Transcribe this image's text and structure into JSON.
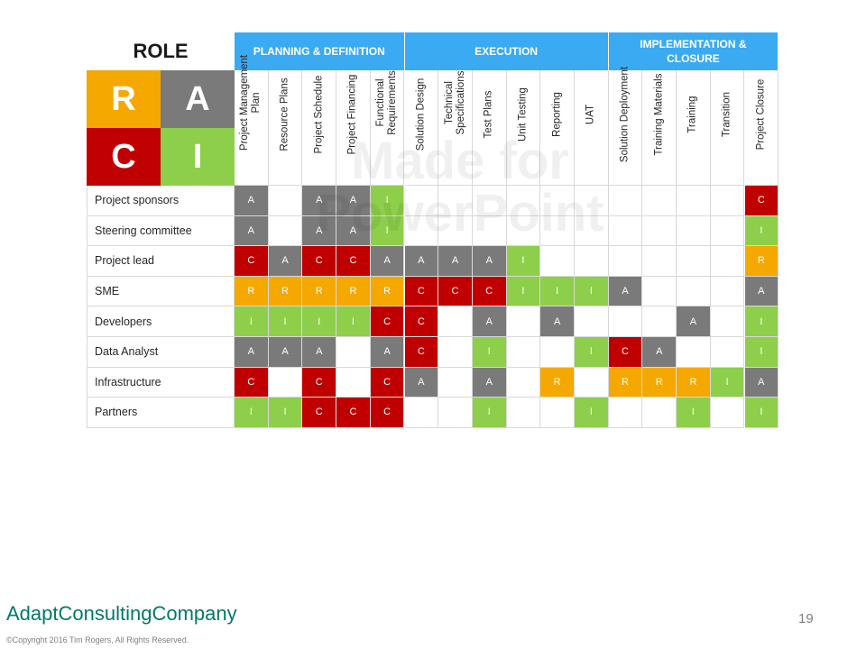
{
  "role_title": "ROLE",
  "legend": [
    {
      "letter": "R",
      "color": "#f5a800"
    },
    {
      "letter": "A",
      "color": "#7a7a7a"
    },
    {
      "letter": "C",
      "color": "#c00000"
    },
    {
      "letter": "I",
      "color": "#8dcf4a"
    }
  ],
  "phases": [
    {
      "label": "PLANNING & DEFINITION",
      "span": 5
    },
    {
      "label": "EXECUTION",
      "span": 6
    },
    {
      "label": "IMPLEMENTATION & CLOSURE",
      "span": 5
    }
  ],
  "columns": [
    "Project Management Plan",
    "Resource Plans",
    "Project Schedule",
    "Project Financing",
    "Functional Requirements",
    "Solution Design",
    "Technical Specifications",
    "Test Plans",
    "Unit Testing",
    "Reporting",
    "UAT",
    "Solution Deployment",
    "Training Materials",
    "Training",
    "Transition",
    "Project Closure"
  ],
  "rows": [
    {
      "role": "Project sponsors",
      "cells": [
        "A",
        "",
        "A",
        "A",
        "I",
        "",
        "",
        "",
        "",
        "",
        "",
        "",
        "",
        "",
        "",
        "C"
      ]
    },
    {
      "role": "Steering committee",
      "cells": [
        "A",
        "",
        "A",
        "A",
        "I",
        "",
        "",
        "",
        "",
        "",
        "",
        "",
        "",
        "",
        "",
        "I"
      ]
    },
    {
      "role": "Project lead",
      "cells": [
        "C",
        "A",
        "C",
        "C",
        "A",
        "A",
        "A",
        "A",
        "I",
        "",
        "",
        "",
        "",
        "",
        "",
        "R"
      ]
    },
    {
      "role": "SME",
      "cells": [
        "R",
        "R",
        "R",
        "R",
        "R",
        "C",
        "C",
        "C",
        "I",
        "I",
        "I",
        "A",
        "",
        "",
        "",
        "A"
      ]
    },
    {
      "role": "Developers",
      "cells": [
        "I",
        "I",
        "I",
        "I",
        "C",
        "C",
        "",
        "A",
        "",
        "A",
        "",
        "",
        "",
        "A",
        "",
        "I"
      ]
    },
    {
      "role": "Data Analyst",
      "cells": [
        "A",
        "A",
        "A",
        "",
        "A",
        "C",
        "",
        "I",
        "",
        "",
        "I",
        "C",
        "A",
        "",
        "",
        "I"
      ]
    },
    {
      "role": "Infrastructure",
      "cells": [
        "C",
        "",
        "C",
        "",
        "C",
        "A",
        "",
        "A",
        "",
        "R",
        "",
        "R",
        "R",
        "R",
        "I",
        "A"
      ]
    },
    {
      "role": "Partners",
      "cells": [
        "I",
        "I",
        "C",
        "C",
        "C",
        "",
        "",
        "I",
        "",
        "",
        "I",
        "",
        "",
        "I",
        "",
        "I"
      ]
    }
  ],
  "colors": {
    "R": "#f5a800",
    "A": "#7a7a7a",
    "C": "#c00000",
    "I": "#8dcf4a",
    "phase": "#3aaaf2"
  },
  "watermark": "Made for PowerPoint",
  "brand": "AdaptConsultingCompany",
  "copyright": "©Copyright 2016 Tim Rogers, All Rights Reserved.",
  "page_number": "19"
}
